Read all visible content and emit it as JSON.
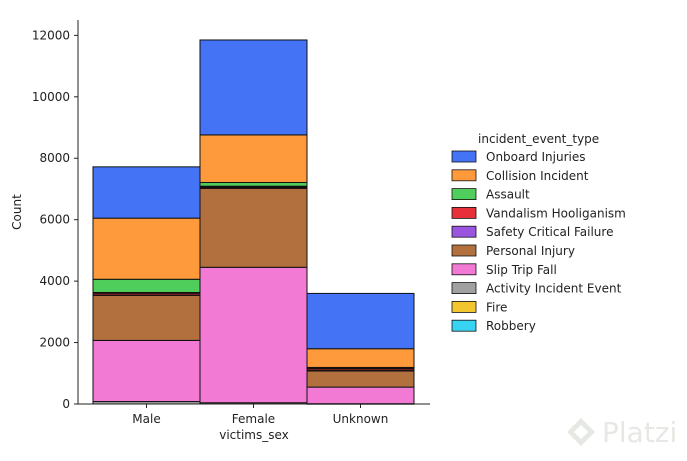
{
  "chart_data": {
    "type": "bar",
    "stacked": true,
    "categories": [
      "Male",
      "Female",
      "Unknown"
    ],
    "xlabel": "victims_sex",
    "ylabel": "Count",
    "ylim": [
      0,
      12500
    ],
    "yticks": [
      0,
      2000,
      4000,
      6000,
      8000,
      10000,
      12000
    ],
    "legend_title": "incident_event_type",
    "legend_position": "right",
    "grid": false,
    "series": [
      {
        "name": "Activity Incident Event",
        "color": "#a0a0a0",
        "values": [
          80,
          40,
          10
        ]
      },
      {
        "name": "Slip Trip Fall",
        "color": "#f27ad4",
        "values": [
          1990,
          4410,
          540
        ]
      },
      {
        "name": "Personal Injury",
        "color": "#b2703e",
        "values": [
          1470,
          2570,
          530
        ]
      },
      {
        "name": "Safety Critical Failure",
        "color": "#9a55e0",
        "values": [
          10,
          20,
          10
        ]
      },
      {
        "name": "Vandalism Hooliganism",
        "color": "#e8303a",
        "values": [
          60,
          30,
          60
        ]
      },
      {
        "name": "Fire",
        "color": "#f3c630",
        "values": [
          10,
          10,
          5
        ]
      },
      {
        "name": "Robbery",
        "color": "#37d3f2",
        "values": [
          10,
          10,
          5
        ]
      },
      {
        "name": "Assault",
        "color": "#4fce5b",
        "values": [
          430,
          120,
          30
        ]
      },
      {
        "name": "Collision Incident",
        "color": "#ff9a3c",
        "values": [
          1990,
          1550,
          610
        ]
      },
      {
        "name": "Onboard Injuries",
        "color": "#4473f6",
        "values": [
          1670,
          3090,
          1800
        ]
      }
    ],
    "legend_order": [
      "Onboard Injuries",
      "Collision Incident",
      "Assault",
      "Vandalism Hooliganism",
      "Safety Critical Failure",
      "Personal Injury",
      "Slip Trip Fall",
      "Activity Incident Event",
      "Fire",
      "Robbery"
    ]
  },
  "watermark": {
    "text": "Platzi"
  }
}
